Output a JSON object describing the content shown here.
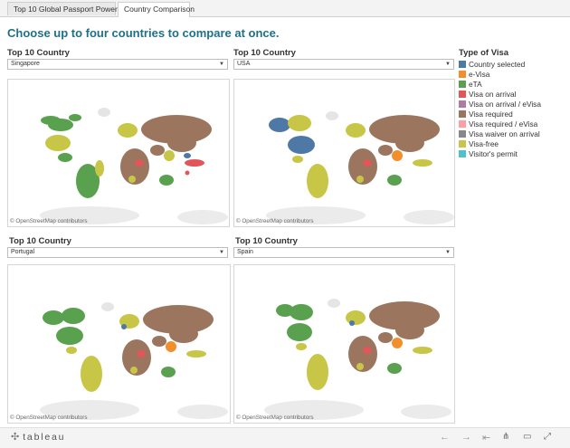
{
  "tabs": [
    {
      "label": "Top 10 Global Passport Power ..."
    },
    {
      "label": "Country Comparison"
    }
  ],
  "heading": "Choose up to four countries to compare at once.",
  "panels": [
    {
      "title": "Top 10 Country",
      "selected": "Singapore",
      "attribution": "© OpenStreetMap contributors"
    },
    {
      "title": "Top 10 Country",
      "selected": "USA",
      "attribution": "© OpenStreetMap contributors"
    },
    {
      "title": "Top 10 Country",
      "selected": "Portugal",
      "attribution": "© OpenStreetMap contributors"
    },
    {
      "title": "Top 10 Country",
      "selected": "Spain",
      "attribution": "© OpenStreetMap contributors"
    }
  ],
  "legend": {
    "title": "Type of Visa",
    "items": [
      {
        "label": "Country selected",
        "color": "#4e79a7"
      },
      {
        "label": "e-Visa",
        "color": "#f28e2b"
      },
      {
        "label": "eTA",
        "color": "#59a14f"
      },
      {
        "label": "Visa on arrival",
        "color": "#e15759"
      },
      {
        "label": "Visa on arrival / eVisa",
        "color": "#b07aa1"
      },
      {
        "label": "Visa required",
        "color": "#9c755f"
      },
      {
        "label": "Visa required / eVisa",
        "color": "#ff9da7"
      },
      {
        "label": "Visa waiver on arrival",
        "color": "#888888"
      },
      {
        "label": "Visa-free",
        "color": "#c7c646"
      },
      {
        "label": "Visitor's permit",
        "color": "#4fc1c9"
      }
    ]
  },
  "footer": {
    "logo": "tableau",
    "nav_icons": [
      "undo-icon",
      "redo-icon",
      "revert-icon"
    ],
    "control_icons": [
      "share-icon",
      "comment-icon",
      "fullscreen-icon"
    ]
  }
}
